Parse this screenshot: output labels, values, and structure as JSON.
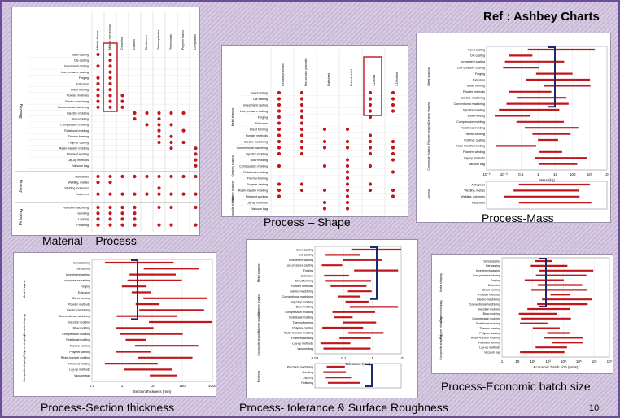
{
  "slide": {
    "reference": "Ref : Ashbey Charts",
    "page_number": "10",
    "accent_color": "#6a4e9a",
    "dot_color": "#c0161c",
    "bar_color": "#c0161c"
  },
  "panels": {
    "material_process": {
      "caption": "Material – Process",
      "columns": [
        "Metals, ferrous",
        "Metals, non-ferrous",
        "Ceramics",
        "Glasses",
        "Elastomers",
        "Thermoplastics",
        "Thermosets",
        "Polymer foams",
        "Composites"
      ],
      "shaping_label": "Shaping",
      "joining_label": "Joining",
      "finishing_label": "Finishing",
      "shaping_rows": [
        "Sand casting",
        "Die casting",
        "Investment casting",
        "Low pressure casting",
        "Forging",
        "Extrusion",
        "Sheet forming",
        "Powder methods",
        "Electro-machining",
        "Conventional machining",
        "Injection molding",
        "Blow molding",
        "Compression molding",
        "Rotational molding",
        "Thermo-forming",
        "Polymer casting",
        "Resin-transfer molding",
        "Filament winding",
        "Lay-up methods",
        "Vacuum bag"
      ],
      "joining_rows": [
        "Adhesives",
        "Welding, metals",
        "Welding, polymers",
        "Fasteners"
      ],
      "finishing_rows": [
        "Precision machining",
        "Grinding",
        "Lapping",
        "Polishing"
      ]
    },
    "process_shape": {
      "caption": "Process – Shape",
      "columns": [
        "Circular prismatic",
        "Non-circular prismatic",
        "Flat sheet",
        "Dished sheet",
        "3-D solid",
        "3-D hollow"
      ],
      "groups": [
        "Metal shaping",
        "Ceramic shaping",
        "Polymer shaping",
        "Composite shaping"
      ],
      "rows": [
        "Sand casting",
        "Die casting",
        "Investment casting",
        "Low pressure casting",
        "Forging",
        "Extrusion",
        "Sheet forming",
        "Powder methods",
        "Electro-machining",
        "Conventional machining",
        "Injection molding",
        "Blow molding",
        "Compression molding",
        "Rotational molding",
        "Thermo-forming",
        "Polymer casting",
        "Resin-transfer molding",
        "Filament winding",
        "Lay-up methods",
        "Vacuum bag"
      ]
    },
    "process_mass": {
      "caption": "Process-Mass",
      "groups": [
        "Metal shaping",
        "Ceramic shaping",
        "Polymer shaping",
        "Composite shaping"
      ],
      "rows": [
        "Sand casting",
        "Die casting",
        "Investment casting",
        "Low pressure casting",
        "Forging",
        "Extrusion",
        "Sheet forming",
        "Powder methods",
        "Electro-machining",
        "Conventional machining",
        "Injection molding",
        "Blow molding",
        "Compression molding",
        "Rotational molding",
        "Thermo-forming",
        "Polymer casting",
        "Resin-transfer molding",
        "Filament winding",
        "Lay-up methods",
        "Vacuum bag"
      ],
      "ticks": [
        "10⁻³",
        "10⁻²",
        "0.1",
        "1",
        "10",
        "100",
        "10³",
        "10⁴"
      ],
      "xlabel": "Mass (kg)",
      "joining_label": "Joining",
      "joining_rows": [
        "Adhesives",
        "Welding, metals",
        "Welding, polymers",
        "Fasteners"
      ]
    },
    "section_thickness": {
      "caption": "Process-Section thickness",
      "groups": [
        "Metal shaping",
        "Ceramic shaping",
        "Polymer shaping",
        "Composite shaping"
      ],
      "rows": [
        "Sand casting",
        "Die casting",
        "Investment casting",
        "Low pressure casting",
        "Forging",
        "Extrusion",
        "Sheet forming",
        "Powder methods",
        "Electro-machining",
        "Conventional machining",
        "Injection molding",
        "Blow molding",
        "Compression molding",
        "Rotational molding",
        "Thermo-forming",
        "Polymer casting",
        "Resin-transfer molding",
        "Filament winding",
        "Lay-up methods",
        "Vacuum bag"
      ],
      "ticks": [
        "0.1",
        "1",
        "10",
        "100",
        "1000"
      ],
      "xlabel": "Section thickness (mm)"
    },
    "tolerance": {
      "caption": "Process- tolerance & Surface Roughness",
      "groups": [
        "Metal shaping",
        "Ceramic shaping",
        "Polymer shaping",
        "Composite shaping"
      ],
      "rows": [
        "Sand casting",
        "Die casting",
        "Investment casting",
        "Low pressure casting",
        "Forging",
        "Extrusion",
        "Sheet forming",
        "Powder methods",
        "Electro-machining",
        "Conventional machining",
        "Injection molding",
        "Blow molding",
        "Compression molding",
        "Rotational molding",
        "Thermo-forming",
        "Polymer casting",
        "Resin-transfer molding",
        "Filament winding",
        "Lay-up methods",
        "Vacuum bag"
      ],
      "ticks": [
        "0.01",
        "0.1",
        "1",
        "10"
      ],
      "xlabel": "Tolerance (mm)",
      "finishing_label": "Finishing",
      "finishing_rows": [
        "Precision machining",
        "Grinding",
        "Lapping",
        "Polishing"
      ]
    },
    "batch_size": {
      "caption": "Process-Economic batch size",
      "groups": [
        "Metal shaping",
        "Ceramic shaping",
        "Polymer shaping",
        "Composite shaping"
      ],
      "rows": [
        "Sand casting",
        "Die casting",
        "Investment casting",
        "Low pressure casting",
        "Forging",
        "Extrusion",
        "Sheet forming",
        "Powder methods",
        "Electro-machining",
        "Conventional machining",
        "Injection molding",
        "Blow molding",
        "Compression molding",
        "Rotational molding",
        "Thermo-forming",
        "Polymer casting",
        "Resin-transfer molding",
        "Filament winding",
        "Lay-up methods",
        "Vacuum bag"
      ],
      "ticks": [
        "1",
        "10",
        "10²",
        "10³",
        "10⁴",
        "10⁵",
        "10⁶",
        "10⁷"
      ],
      "xlabel": "Economic batch size (units)"
    }
  }
}
